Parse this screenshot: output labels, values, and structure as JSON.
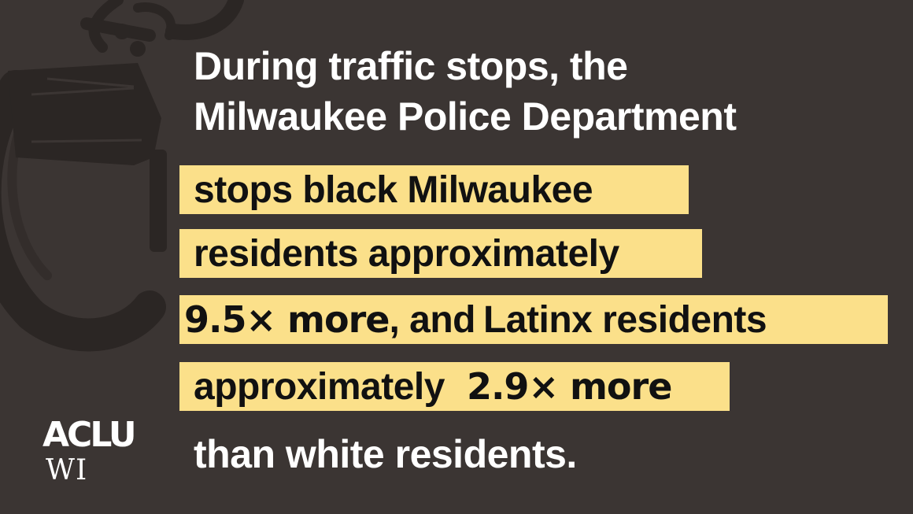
{
  "headline": {
    "line1": "During traffic stops, the",
    "line2": "Milwaukee Police Department"
  },
  "highlights": {
    "line1": "stops black Milwaukee",
    "line2": "residents approximately",
    "line3": {
      "emphasis": "9.5× more",
      "text_a": ", and",
      "text_b": "Latinx residents"
    },
    "line4": {
      "text": "approximately",
      "emphasis": "2.9× more"
    }
  },
  "closing": "than white residents.",
  "logo": {
    "mark": "ACLU",
    "sub": "WI"
  },
  "colors": {
    "background": "#3b3533",
    "highlight": "#fbe08a",
    "text_light": "#ffffff",
    "text_dark": "#111111"
  }
}
